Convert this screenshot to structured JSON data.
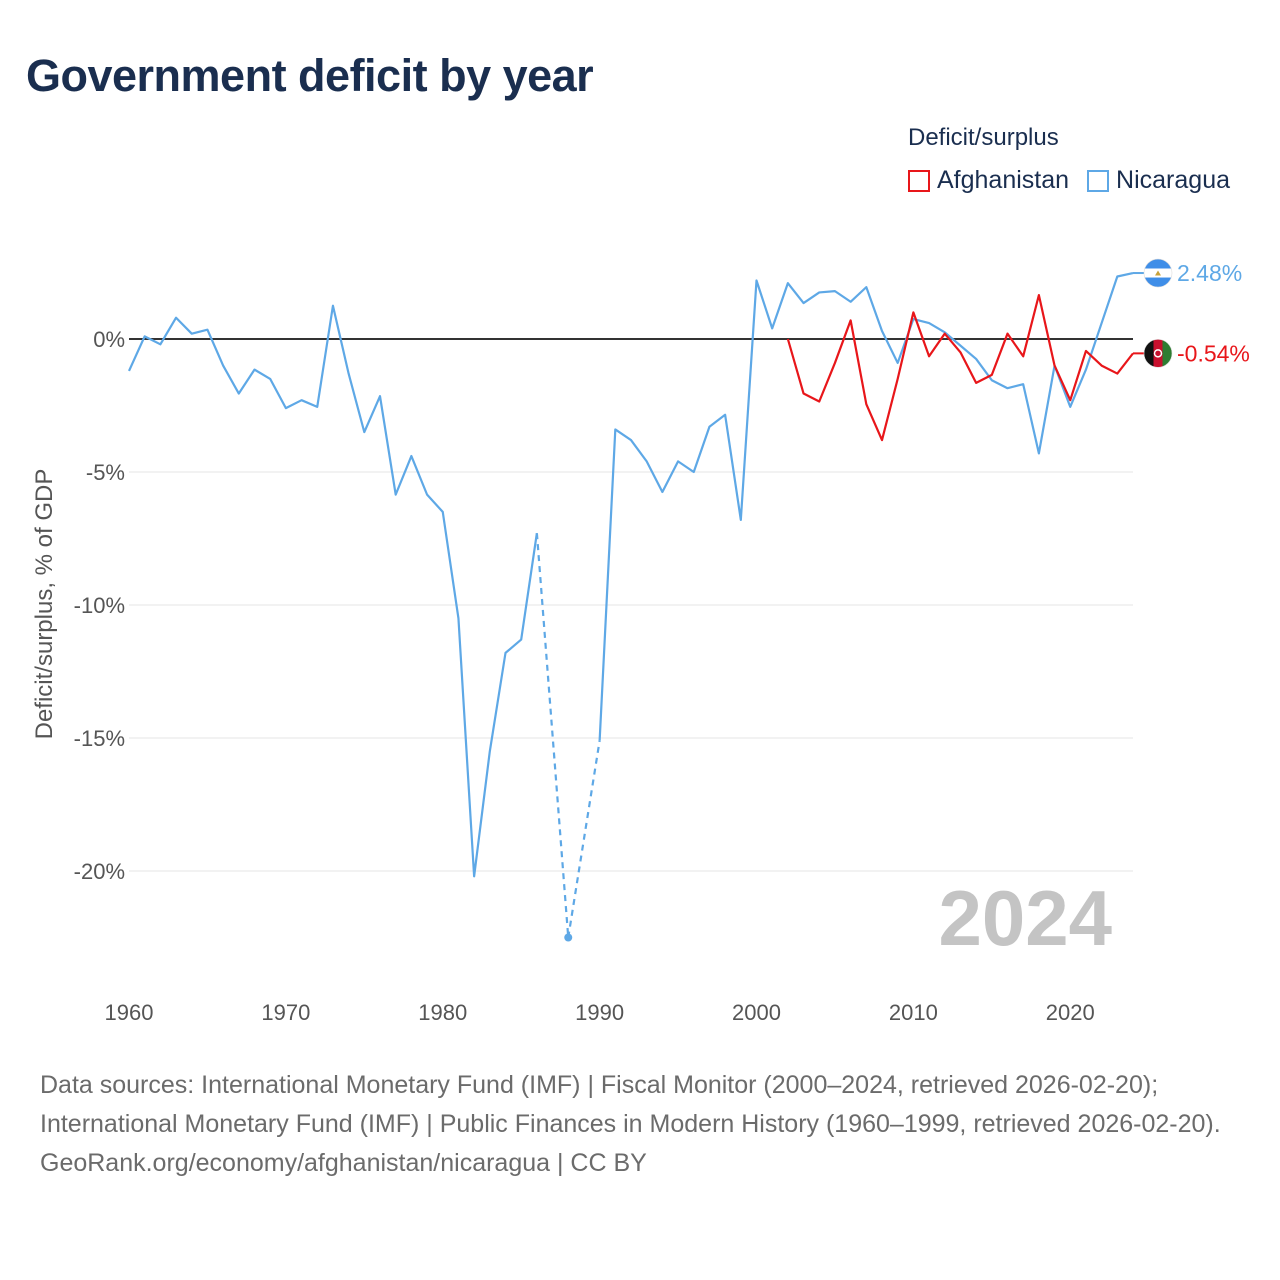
{
  "title": "Government deficit by year",
  "legend": {
    "title": "Deficit/surplus",
    "items": [
      {
        "name": "Afghanistan",
        "color": "#e8161a"
      },
      {
        "name": "Nicaragua",
        "color": "#5ea8e6"
      }
    ]
  },
  "year_watermark": "2024",
  "footer": {
    "sources": "Data sources: International Monetary Fund (IMF) | Fiscal Monitor (2000–2024, retrieved 2026-02-20); International Monetary Fund (IMF) | Public Finances in Modern History (1960–1999, retrieved 2026-02-20).",
    "credit": "GeoRank.org/economy/afghanistan/nicaragua | CC BY"
  },
  "chart_data": {
    "type": "line",
    "ylabel": "Deficit/surplus, % of GDP",
    "xlabel": "",
    "xlim": [
      1960,
      2024
    ],
    "ylim": [
      -24,
      3
    ],
    "x_ticks": [
      1960,
      1970,
      1980,
      1990,
      2000,
      2010,
      2020
    ],
    "y_ticks": [
      {
        "value": 0,
        "label": "0%"
      },
      {
        "value": -5,
        "label": "-5%"
      },
      {
        "value": -10,
        "label": "-10%"
      },
      {
        "value": -15,
        "label": "-15%"
      },
      {
        "value": -20,
        "label": "-20%"
      }
    ],
    "zero_line": true,
    "series": [
      {
        "name": "Nicaragua",
        "color": "#5ea8e6",
        "end_label": "2.48%",
        "flag": "nicaragua-flag-icon",
        "points": [
          [
            1960,
            -1.2
          ],
          [
            1961,
            0.1
          ],
          [
            1962,
            -0.2
          ],
          [
            1963,
            0.8
          ],
          [
            1964,
            0.2
          ],
          [
            1965,
            0.35
          ],
          [
            1966,
            -1.0
          ],
          [
            1967,
            -2.05
          ],
          [
            1968,
            -1.15
          ],
          [
            1969,
            -1.5
          ],
          [
            1970,
            -2.6
          ],
          [
            1971,
            -2.3
          ],
          [
            1972,
            -2.55
          ],
          [
            1973,
            1.25
          ],
          [
            1974,
            -1.3
          ],
          [
            1975,
            -3.5
          ],
          [
            1976,
            -2.15
          ],
          [
            1977,
            -5.85
          ],
          [
            1978,
            -4.4
          ],
          [
            1979,
            -5.85
          ],
          [
            1980,
            -6.5
          ],
          [
            1981,
            -10.5
          ],
          [
            1982,
            -20.2
          ],
          [
            1983,
            -15.5
          ],
          [
            1984,
            -11.8
          ],
          [
            1985,
            -11.3
          ],
          [
            1986,
            -7.3
          ],
          [
            1988,
            -22.5
          ],
          [
            1990,
            -15.1
          ],
          [
            1991,
            -3.4
          ],
          [
            1992,
            -3.8
          ],
          [
            1993,
            -4.6
          ],
          [
            1994,
            -5.75
          ],
          [
            1995,
            -4.6
          ],
          [
            1996,
            -5.0
          ],
          [
            1997,
            -3.3
          ],
          [
            1998,
            -2.85
          ],
          [
            1999,
            -6.8
          ],
          [
            2000,
            2.2
          ],
          [
            2001,
            0.4
          ],
          [
            2002,
            2.1
          ],
          [
            2003,
            1.35
          ],
          [
            2004,
            1.75
          ],
          [
            2005,
            1.8
          ],
          [
            2006,
            1.4
          ],
          [
            2007,
            1.95
          ],
          [
            2008,
            0.3
          ],
          [
            2009,
            -0.9
          ],
          [
            2010,
            0.75
          ],
          [
            2011,
            0.6
          ],
          [
            2012,
            0.25
          ],
          [
            2013,
            -0.25
          ],
          [
            2014,
            -0.75
          ],
          [
            2015,
            -1.55
          ],
          [
            2016,
            -1.85
          ],
          [
            2017,
            -1.7
          ],
          [
            2018,
            -4.3
          ],
          [
            2019,
            -1.0
          ],
          [
            2020,
            -2.55
          ],
          [
            2021,
            -1.15
          ],
          [
            2022,
            0.6
          ],
          [
            2023,
            2.35
          ],
          [
            2024,
            2.48
          ]
        ],
        "dashed_segments": [
          [
            1986,
            1988
          ],
          [
            1988,
            1990
          ]
        ],
        "marker_points": [
          1988
        ]
      },
      {
        "name": "Afghanistan",
        "color": "#e8161a",
        "end_label": "-0.54%",
        "flag": "afghanistan-flag-icon",
        "points": [
          [
            2002,
            0.0
          ],
          [
            2003,
            -2.05
          ],
          [
            2004,
            -2.35
          ],
          [
            2005,
            -0.9
          ],
          [
            2006,
            0.7
          ],
          [
            2007,
            -2.45
          ],
          [
            2008,
            -3.8
          ],
          [
            2009,
            -1.5
          ],
          [
            2010,
            1.0
          ],
          [
            2011,
            -0.65
          ],
          [
            2012,
            0.2
          ],
          [
            2013,
            -0.5
          ],
          [
            2014,
            -1.65
          ],
          [
            2015,
            -1.35
          ],
          [
            2016,
            0.2
          ],
          [
            2017,
            -0.65
          ],
          [
            2018,
            1.65
          ],
          [
            2019,
            -1.0
          ],
          [
            2020,
            -2.3
          ],
          [
            2021,
            -0.45
          ],
          [
            2022,
            -1.0
          ],
          [
            2023,
            -1.3
          ],
          [
            2024,
            -0.54
          ]
        ],
        "dashed_segments": [],
        "marker_points": []
      }
    ]
  }
}
